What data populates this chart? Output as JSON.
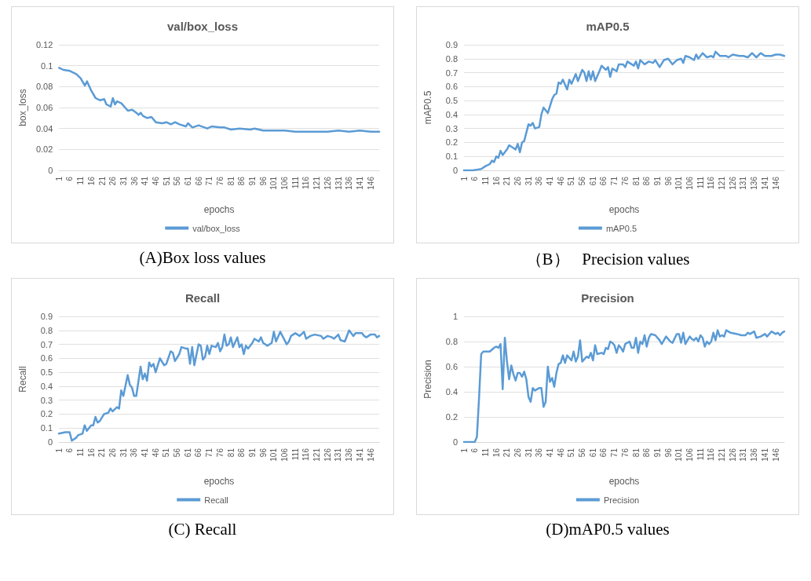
{
  "chart_data": [
    {
      "type": "line",
      "title": "val/box_loss",
      "xlabel": "epochs",
      "ylabel": "box_loss",
      "annotations": [
        "(A)Box loss values"
      ],
      "xlim": [
        1,
        150
      ],
      "xticks": [
        1,
        6,
        11,
        16,
        21,
        26,
        31,
        36,
        41,
        46,
        51,
        56,
        61,
        66,
        71,
        76,
        81,
        86,
        91,
        96,
        101,
        106,
        111,
        116,
        121,
        126,
        131,
        136,
        141,
        146
      ],
      "ylim": [
        0,
        0.12
      ],
      "yticks": [
        0,
        0.02,
        0.04,
        0.06,
        0.08,
        0.1,
        0.12
      ],
      "grid": "y",
      "legend": "bottom",
      "series": [
        {
          "name": "val/box_loss",
          "color": "#5b9bd5",
          "x": [
            1,
            3,
            6,
            9,
            11,
            13,
            14,
            16,
            18,
            20,
            22,
            23,
            25,
            26,
            27,
            28,
            30,
            33,
            35,
            37,
            38,
            39,
            40,
            42,
            44,
            46,
            49,
            51,
            53,
            55,
            57,
            60,
            61,
            63,
            66,
            70,
            72,
            76,
            78,
            81,
            85,
            90,
            92,
            96,
            101,
            106,
            111,
            116,
            121,
            126,
            131,
            136,
            141,
            146,
            150
          ],
          "values": [
            0.098,
            0.096,
            0.095,
            0.092,
            0.088,
            0.081,
            0.085,
            0.076,
            0.069,
            0.067,
            0.068,
            0.063,
            0.061,
            0.069,
            0.063,
            0.066,
            0.064,
            0.057,
            0.058,
            0.055,
            0.053,
            0.055,
            0.052,
            0.05,
            0.051,
            0.046,
            0.045,
            0.046,
            0.044,
            0.046,
            0.044,
            0.042,
            0.045,
            0.041,
            0.043,
            0.04,
            0.042,
            0.041,
            0.041,
            0.039,
            0.04,
            0.039,
            0.04,
            0.038,
            0.038,
            0.038,
            0.037,
            0.037,
            0.037,
            0.037,
            0.038,
            0.037,
            0.038,
            0.037,
            0.037
          ]
        }
      ]
    },
    {
      "type": "line",
      "title": "mAP0.5",
      "xlabel": "epochs",
      "ylabel": "mAP0.5",
      "annotations": [
        "（B）   Precision values"
      ],
      "xlim": [
        1,
        150
      ],
      "xticks": [
        1,
        6,
        11,
        16,
        21,
        26,
        31,
        36,
        41,
        46,
        51,
        56,
        61,
        66,
        71,
        76,
        81,
        86,
        91,
        96,
        101,
        106,
        111,
        116,
        121,
        126,
        131,
        136,
        141,
        146
      ],
      "ylim": [
        0,
        0.9
      ],
      "yticks": [
        0,
        0.1,
        0.2,
        0.3,
        0.4,
        0.5,
        0.6,
        0.7,
        0.8,
        0.9
      ],
      "grid": "y",
      "legend": "bottom",
      "series": [
        {
          "name": "mAP0.5",
          "color": "#5b9bd5",
          "x": [
            1,
            5,
            7,
            9,
            11,
            13,
            14,
            15,
            16,
            17,
            18,
            19,
            21,
            22,
            24,
            25,
            26,
            27,
            28,
            29,
            31,
            32,
            33,
            34,
            36,
            37,
            38,
            40,
            42,
            43,
            44,
            45,
            46,
            47,
            49,
            50,
            51,
            53,
            54,
            56,
            57,
            58,
            59,
            60,
            61,
            62,
            64,
            65,
            67,
            68,
            69,
            70,
            72,
            73,
            75,
            76,
            77,
            80,
            81,
            82,
            83,
            85,
            87,
            89,
            90,
            92,
            94,
            96,
            98,
            100,
            102,
            103,
            104,
            106,
            108,
            109,
            110,
            112,
            114,
            116,
            117,
            118,
            120,
            123,
            124,
            126,
            129,
            131,
            133,
            135,
            137,
            139,
            141,
            144,
            146,
            148,
            150
          ],
          "values": [
            0,
            0,
            0.005,
            0.01,
            0.03,
            0.045,
            0.07,
            0.06,
            0.1,
            0.09,
            0.14,
            0.11,
            0.15,
            0.18,
            0.16,
            0.15,
            0.19,
            0.13,
            0.2,
            0.21,
            0.33,
            0.32,
            0.34,
            0.3,
            0.31,
            0.4,
            0.45,
            0.41,
            0.51,
            0.54,
            0.55,
            0.63,
            0.62,
            0.65,
            0.58,
            0.65,
            0.62,
            0.69,
            0.64,
            0.72,
            0.7,
            0.64,
            0.71,
            0.65,
            0.71,
            0.64,
            0.71,
            0.75,
            0.72,
            0.74,
            0.67,
            0.73,
            0.71,
            0.76,
            0.76,
            0.74,
            0.78,
            0.75,
            0.78,
            0.73,
            0.79,
            0.76,
            0.78,
            0.77,
            0.79,
            0.74,
            0.79,
            0.8,
            0.76,
            0.79,
            0.8,
            0.77,
            0.82,
            0.81,
            0.79,
            0.83,
            0.8,
            0.84,
            0.81,
            0.82,
            0.81,
            0.85,
            0.82,
            0.82,
            0.81,
            0.83,
            0.82,
            0.82,
            0.81,
            0.84,
            0.81,
            0.84,
            0.82,
            0.82,
            0.83,
            0.83,
            0.82
          ]
        }
      ]
    },
    {
      "type": "line",
      "title": "Recall",
      "xlabel": "epochs",
      "ylabel": "Recall",
      "annotations": [
        "(C) Recall"
      ],
      "xlim": [
        1,
        150
      ],
      "xticks": [
        1,
        6,
        11,
        16,
        21,
        26,
        31,
        36,
        41,
        46,
        51,
        56,
        61,
        66,
        71,
        76,
        81,
        86,
        91,
        96,
        101,
        106,
        111,
        116,
        121,
        126,
        131,
        136,
        141,
        146
      ],
      "ylim": [
        0,
        0.9
      ],
      "yticks": [
        0,
        0.1,
        0.2,
        0.3,
        0.4,
        0.5,
        0.6,
        0.7,
        0.8,
        0.9
      ],
      "grid": "y",
      "legend": "bottom",
      "series": [
        {
          "name": "Recall",
          "color": "#5b9bd5",
          "x": [
            1,
            4,
            6,
            7,
            9,
            10,
            12,
            13,
            14,
            16,
            17,
            18,
            19,
            20,
            22,
            24,
            25,
            26,
            28,
            29,
            30,
            31,
            33,
            34,
            35,
            36,
            37,
            39,
            40,
            41,
            42,
            43,
            44,
            45,
            46,
            48,
            50,
            51,
            53,
            54,
            55,
            57,
            58,
            60,
            61,
            62,
            63,
            64,
            66,
            67,
            68,
            69,
            70,
            71,
            72,
            74,
            75,
            76,
            77,
            78,
            79,
            80,
            81,
            82,
            84,
            85,
            86,
            87,
            88,
            89,
            91,
            92,
            94,
            95,
            96,
            98,
            100,
            101,
            102,
            104,
            107,
            108,
            109,
            111,
            113,
            115,
            116,
            118,
            120,
            123,
            124,
            126,
            128,
            129,
            131,
            132,
            134,
            136,
            138,
            139,
            142,
            143,
            144,
            146,
            148,
            149,
            150
          ],
          "values": [
            0.06,
            0.07,
            0.07,
            0.01,
            0.03,
            0.05,
            0.06,
            0.12,
            0.08,
            0.12,
            0.12,
            0.18,
            0.14,
            0.15,
            0.2,
            0.21,
            0.24,
            0.22,
            0.25,
            0.24,
            0.37,
            0.33,
            0.48,
            0.41,
            0.39,
            0.33,
            0.33,
            0.54,
            0.45,
            0.49,
            0.44,
            0.57,
            0.54,
            0.56,
            0.5,
            0.6,
            0.55,
            0.56,
            0.65,
            0.64,
            0.58,
            0.63,
            0.68,
            0.67,
            0.67,
            0.56,
            0.68,
            0.55,
            0.7,
            0.69,
            0.59,
            0.61,
            0.69,
            0.63,
            0.69,
            0.68,
            0.71,
            0.65,
            0.68,
            0.77,
            0.69,
            0.7,
            0.75,
            0.68,
            0.75,
            0.68,
            0.7,
            0.63,
            0.69,
            0.67,
            0.71,
            0.74,
            0.72,
            0.75,
            0.71,
            0.69,
            0.71,
            0.79,
            0.72,
            0.79,
            0.7,
            0.72,
            0.76,
            0.78,
            0.76,
            0.79,
            0.74,
            0.76,
            0.77,
            0.76,
            0.74,
            0.76,
            0.75,
            0.74,
            0.77,
            0.73,
            0.72,
            0.8,
            0.76,
            0.78,
            0.78,
            0.76,
            0.75,
            0.77,
            0.77,
            0.75,
            0.76
          ]
        }
      ]
    },
    {
      "type": "line",
      "title": "Precision",
      "xlabel": "epochs",
      "ylabel": "Precision",
      "annotations": [
        "(D)mAP0.5 values"
      ],
      "xlim": [
        1,
        150
      ],
      "xticks": [
        1,
        6,
        11,
        16,
        21,
        26,
        31,
        36,
        41,
        46,
        51,
        56,
        61,
        66,
        71,
        76,
        81,
        86,
        91,
        96,
        101,
        106,
        111,
        116,
        121,
        126,
        131,
        136,
        141,
        146
      ],
      "ylim": [
        0,
        1
      ],
      "yticks": [
        0,
        0.2,
        0.4,
        0.6,
        0.8,
        1
      ],
      "grid": "y",
      "legend": "bottom",
      "series": [
        {
          "name": "Precision",
          "color": "#5b9bd5",
          "x": [
            1,
            6,
            7,
            8,
            9,
            10,
            13,
            15,
            16,
            17,
            18,
            19,
            20,
            21,
            22,
            23,
            24,
            25,
            26,
            27,
            28,
            29,
            30,
            31,
            32,
            33,
            34,
            36,
            37,
            38,
            39,
            40,
            41,
            42,
            43,
            44,
            45,
            46,
            47,
            48,
            49,
            51,
            52,
            53,
            54,
            55,
            56,
            58,
            59,
            60,
            61,
            62,
            63,
            65,
            66,
            67,
            68,
            69,
            70,
            71,
            72,
            73,
            74,
            75,
            76,
            78,
            79,
            80,
            81,
            82,
            83,
            84,
            85,
            86,
            87,
            88,
            90,
            92,
            93,
            95,
            97,
            98,
            100,
            101,
            102,
            103,
            104,
            106,
            107,
            108,
            109,
            110,
            111,
            112,
            113,
            114,
            115,
            116,
            117,
            118,
            119,
            120,
            121,
            122,
            123,
            125,
            128,
            130,
            132,
            133,
            134,
            136,
            137,
            139,
            141,
            142,
            144,
            146,
            147,
            148,
            149,
            150
          ],
          "values": [
            0,
            0,
            0.04,
            0.35,
            0.7,
            0.72,
            0.72,
            0.75,
            0.76,
            0.75,
            0.78,
            0.42,
            0.83,
            0.64,
            0.5,
            0.61,
            0.54,
            0.49,
            0.55,
            0.55,
            0.52,
            0.56,
            0.5,
            0.36,
            0.32,
            0.43,
            0.41,
            0.43,
            0.43,
            0.28,
            0.32,
            0.6,
            0.48,
            0.51,
            0.44,
            0.55,
            0.62,
            0.63,
            0.69,
            0.63,
            0.69,
            0.65,
            0.72,
            0.64,
            0.68,
            0.81,
            0.64,
            0.68,
            0.67,
            0.71,
            0.65,
            0.77,
            0.7,
            0.71,
            0.7,
            0.75,
            0.74,
            0.8,
            0.79,
            0.77,
            0.71,
            0.77,
            0.75,
            0.72,
            0.78,
            0.8,
            0.75,
            0.75,
            0.83,
            0.71,
            0.8,
            0.78,
            0.85,
            0.76,
            0.83,
            0.86,
            0.85,
            0.81,
            0.78,
            0.84,
            0.8,
            0.79,
            0.86,
            0.86,
            0.79,
            0.87,
            0.78,
            0.84,
            0.82,
            0.81,
            0.83,
            0.8,
            0.85,
            0.83,
            0.76,
            0.8,
            0.78,
            0.8,
            0.87,
            0.81,
            0.89,
            0.84,
            0.85,
            0.84,
            0.89,
            0.87,
            0.86,
            0.85,
            0.85,
            0.87,
            0.86,
            0.88,
            0.83,
            0.84,
            0.86,
            0.84,
            0.88,
            0.86,
            0.87,
            0.85,
            0.87,
            0.88
          ]
        }
      ]
    }
  ]
}
